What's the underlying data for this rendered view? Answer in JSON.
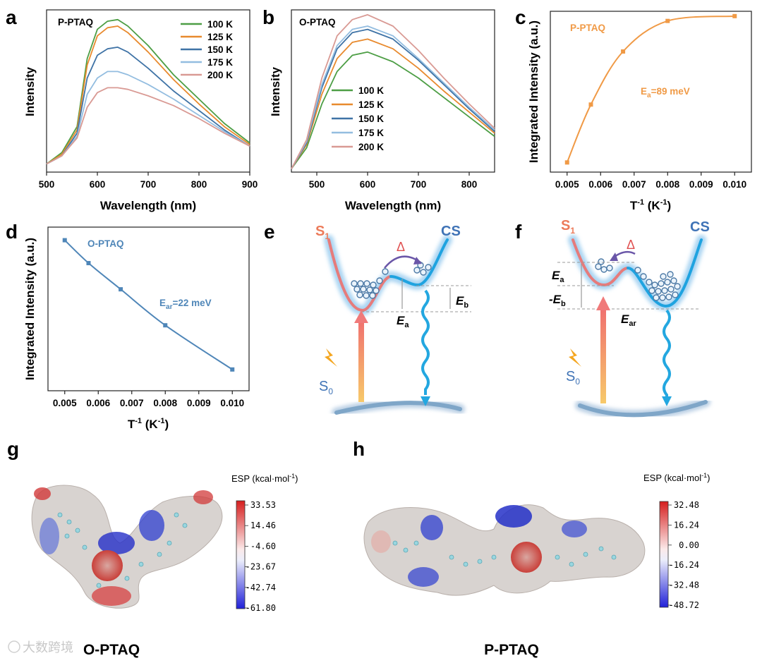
{
  "panels": {
    "a": "a",
    "b": "b",
    "c": "c",
    "d": "d",
    "e": "e",
    "f": "f",
    "g": "g",
    "h": "h"
  },
  "plot_a": {
    "label": "P-PTAQ",
    "xlabel": "Wavelength (nm)",
    "ylabel": "Intensity",
    "xticks": [
      "500",
      "600",
      "700",
      "800",
      "900"
    ]
  },
  "plot_b": {
    "label": "O-PTAQ",
    "xlabel": "Wavelength (nm)",
    "ylabel": "Intensity",
    "xticks": [
      "500",
      "600",
      "700",
      "800"
    ]
  },
  "plot_c": {
    "label": "P-PTAQ",
    "xlabel": "T",
    "xlabel_sup": "-1",
    "xlabel_unit": " (K",
    "xlabel_unit_sup": "-1",
    "xlabel_end": ")",
    "ylabel": "Integrated Intensity (a.u.)",
    "ann": "E",
    "ann_sub": "a",
    "ann_val": "=89 meV",
    "xticks": [
      "0.005",
      "0.006",
      "0.007",
      "0.008",
      "0.009",
      "0.010"
    ]
  },
  "plot_d": {
    "label": "O-PTAQ",
    "xlabel": "T",
    "xlabel_sup": "-1",
    "xlabel_unit": " (K",
    "xlabel_unit_sup": "-1",
    "xlabel_end": ")",
    "ylabel": "Integrated Intensity (a.u.)",
    "ann": "E",
    "ann_sub": "ar",
    "ann_val": "=22 meV",
    "xticks": [
      "0.005",
      "0.006",
      "0.007",
      "0.008",
      "0.009",
      "0.010"
    ]
  },
  "legend": [
    "100 K",
    "125 K",
    "150 K",
    "175 K",
    "200 K"
  ],
  "diagram_e": {
    "s1": "S",
    "s1_sub": "1",
    "cs": "CS",
    "s0": "S",
    "s0_sub": "0",
    "delta": "Δ",
    "eb": "E",
    "eb_sub": "b",
    "ea": "E",
    "ea_sub": "a"
  },
  "diagram_f": {
    "s1": "S",
    "s1_sub": "1",
    "cs": "CS",
    "s0": "S",
    "s0_sub": "0",
    "delta": "Δ",
    "ea": "E",
    "ea_sub": "a",
    "neb": "-E",
    "neb_sub": "b",
    "ear": "E",
    "ear_sub": "ar"
  },
  "esp_g": {
    "title": "ESP (kcal·mol",
    "title_sup": "-1",
    "title_end": ")",
    "ticks": [
      "33.53",
      "14.46",
      "-4.60",
      "-23.67",
      "-42.74",
      "-61.80"
    ],
    "name": "O-PTAQ"
  },
  "esp_h": {
    "title": "ESP (kcal·mol",
    "title_sup": "-1",
    "title_end": ")",
    "ticks": [
      "32.48",
      "16.24",
      "0.00",
      "-16.24",
      "-32.48",
      "-48.72"
    ],
    "name": "P-PTAQ"
  },
  "watermark": "大数跨境",
  "colors": {
    "c100": "#4d9e45",
    "c125": "#e88a2e",
    "c150": "#3f73a6",
    "c175": "#93bde0",
    "c200": "#d99a94",
    "orange": "#f09a46",
    "blue": "#4f86b8",
    "red": "#e06060",
    "cyan": "#23a7e0"
  },
  "chart_data": [
    {
      "type": "line",
      "title": "P-PTAQ",
      "xlabel": "Wavelength (nm)",
      "ylabel": "Intensity",
      "xlim": [
        500,
        900
      ],
      "series": [
        {
          "name": "100 K",
          "x": [
            500,
            530,
            560,
            580,
            600,
            620,
            640,
            660,
            700,
            750,
            800,
            850,
            900
          ],
          "y": [
            0.05,
            0.12,
            0.28,
            0.7,
            0.88,
            0.93,
            0.94,
            0.9,
            0.78,
            0.6,
            0.45,
            0.3,
            0.18
          ]
        },
        {
          "name": "125 K",
          "x": [
            500,
            530,
            560,
            580,
            600,
            620,
            640,
            660,
            700,
            750,
            800,
            850,
            900
          ],
          "y": [
            0.05,
            0.11,
            0.26,
            0.66,
            0.84,
            0.89,
            0.9,
            0.86,
            0.74,
            0.57,
            0.42,
            0.28,
            0.17
          ]
        },
        {
          "name": "150 K",
          "x": [
            500,
            530,
            560,
            580,
            600,
            620,
            640,
            660,
            700,
            750,
            800,
            850,
            900
          ],
          "y": [
            0.05,
            0.1,
            0.24,
            0.58,
            0.72,
            0.76,
            0.77,
            0.74,
            0.64,
            0.5,
            0.38,
            0.26,
            0.16
          ]
        },
        {
          "name": "175 K",
          "x": [
            500,
            530,
            560,
            580,
            600,
            620,
            640,
            660,
            700,
            750,
            800,
            850,
            900
          ],
          "y": [
            0.05,
            0.1,
            0.22,
            0.48,
            0.58,
            0.62,
            0.62,
            0.6,
            0.54,
            0.45,
            0.35,
            0.25,
            0.16
          ]
        },
        {
          "name": "200 K",
          "x": [
            500,
            530,
            560,
            580,
            600,
            620,
            640,
            660,
            700,
            750,
            800,
            850,
            900
          ],
          "y": [
            0.05,
            0.1,
            0.21,
            0.4,
            0.49,
            0.52,
            0.52,
            0.51,
            0.47,
            0.41,
            0.33,
            0.24,
            0.16
          ]
        }
      ]
    },
    {
      "type": "line",
      "title": "O-PTAQ",
      "xlabel": "Wavelength (nm)",
      "ylabel": "Intensity",
      "xlim": [
        450,
        850
      ],
      "series": [
        {
          "name": "100 K",
          "x": [
            450,
            480,
            510,
            540,
            570,
            600,
            650,
            700,
            750,
            800,
            850
          ],
          "y": [
            0.02,
            0.15,
            0.42,
            0.62,
            0.72,
            0.74,
            0.68,
            0.58,
            0.46,
            0.34,
            0.22
          ]
        },
        {
          "name": "125 K",
          "x": [
            450,
            480,
            510,
            540,
            570,
            600,
            650,
            700,
            750,
            800,
            850
          ],
          "y": [
            0.02,
            0.17,
            0.48,
            0.7,
            0.8,
            0.82,
            0.76,
            0.64,
            0.5,
            0.37,
            0.24
          ]
        },
        {
          "name": "150 K",
          "x": [
            450,
            480,
            510,
            540,
            570,
            600,
            650,
            700,
            750,
            800,
            850
          ],
          "y": [
            0.02,
            0.18,
            0.52,
            0.76,
            0.86,
            0.88,
            0.82,
            0.69,
            0.54,
            0.39,
            0.25
          ]
        },
        {
          "name": "175 K",
          "x": [
            450,
            480,
            510,
            540,
            570,
            600,
            650,
            700,
            750,
            800,
            850
          ],
          "y": [
            0.02,
            0.19,
            0.54,
            0.78,
            0.88,
            0.9,
            0.84,
            0.7,
            0.55,
            0.4,
            0.26
          ]
        },
        {
          "name": "200 K",
          "x": [
            450,
            480,
            510,
            540,
            570,
            600,
            650,
            700,
            750,
            800,
            850
          ],
          "y": [
            0.02,
            0.2,
            0.58,
            0.84,
            0.94,
            0.97,
            0.9,
            0.75,
            0.58,
            0.42,
            0.27
          ]
        }
      ]
    },
    {
      "type": "scatter",
      "title": "P-PTAQ",
      "xlabel": "T-1 (K-1)",
      "ylabel": "Integrated Intensity (a.u.)",
      "xlim": [
        0.0045,
        0.0105
      ],
      "ylim": [
        0,
        1
      ],
      "x": [
        0.005,
        0.00571,
        0.00667,
        0.008,
        0.01
      ],
      "y": [
        0.06,
        0.42,
        0.75,
        0.94,
        0.97
      ],
      "annotation": "Ea=89 meV"
    },
    {
      "type": "scatter",
      "title": "O-PTAQ",
      "xlabel": "T-1 (K-1)",
      "ylabel": "Integrated Intensity (a.u.)",
      "xlim": [
        0.0045,
        0.0105
      ],
      "ylim": [
        0,
        1
      ],
      "x": [
        0.005,
        0.00571,
        0.00667,
        0.008,
        0.01
      ],
      "y": [
        0.92,
        0.78,
        0.62,
        0.4,
        0.13
      ],
      "annotation": "Ear=22 meV"
    }
  ]
}
